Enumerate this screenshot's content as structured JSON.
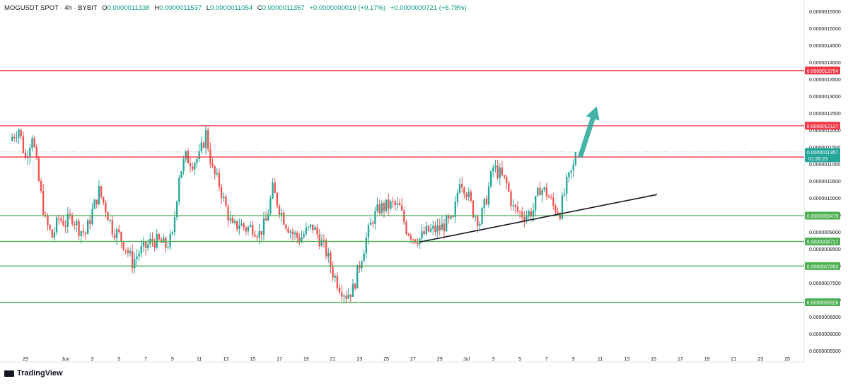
{
  "legend": {
    "symbol": "MOGUSDT SPOT · 4h · BYBIT",
    "o_label": "O",
    "o_value": "0.0000011338",
    "h_label": "H",
    "h_value": "0.0000011537",
    "l_label": "L",
    "l_value": "0.0000011054",
    "c_label": "C",
    "c_value": "0.0000011357",
    "change": "+0.0000000019 (+0.17%)",
    "range": "+0.0000000721 (+6.78%)"
  },
  "brand": {
    "name": "TradingView"
  },
  "colors": {
    "up": "#26a69a",
    "down": "#ef5350",
    "resistance": "#f23645",
    "support": "#4caf50",
    "trendline": "#131722",
    "arrow": "#26a69a",
    "current_price_bg": "#26a69a"
  },
  "chart_data": {
    "type": "candlestick",
    "timeframe": "4h",
    "yrange": [
      5.3e-07,
      1.575e-06
    ],
    "y_ticks": [
      "0.0000015500",
      "0.0000015000",
      "0.0000014500",
      "0.0000014000",
      "0.0000013500",
      "0.0000013000",
      "0.0000012500",
      "0.0000012000",
      "0.0000011500",
      "0.0000011000",
      "0.0000010500",
      "0.0000010000",
      "0.0000009500",
      "0.0000009000",
      "0.0000008500",
      "0.0000008000",
      "0.0000007500",
      "0.0000007000",
      "0.0000006500",
      "0.0000006000",
      "0.0000005500"
    ],
    "x_range": [
      "2024-05-29",
      "2024-07-26"
    ],
    "x_ticks": [
      {
        "date": "2024-05-29",
        "label": "29"
      },
      {
        "date": "2024-06-01",
        "label": "Jun"
      },
      {
        "date": "2024-06-03",
        "label": "3"
      },
      {
        "date": "2024-06-05",
        "label": "5"
      },
      {
        "date": "2024-06-07",
        "label": "7"
      },
      {
        "date": "2024-06-09",
        "label": "9"
      },
      {
        "date": "2024-06-11",
        "label": "11"
      },
      {
        "date": "2024-06-13",
        "label": "13"
      },
      {
        "date": "2024-06-15",
        "label": "15"
      },
      {
        "date": "2024-06-17",
        "label": "17"
      },
      {
        "date": "2024-06-19",
        "label": "19"
      },
      {
        "date": "2024-06-21",
        "label": "21"
      },
      {
        "date": "2024-06-23",
        "label": "23"
      },
      {
        "date": "2024-06-25",
        "label": "25"
      },
      {
        "date": "2024-06-27",
        "label": "27"
      },
      {
        "date": "2024-06-29",
        "label": "29"
      },
      {
        "date": "2024-07-01",
        "label": "Jul"
      },
      {
        "date": "2024-07-03",
        "label": "3"
      },
      {
        "date": "2024-07-05",
        "label": "5"
      },
      {
        "date": "2024-07-07",
        "label": "7"
      },
      {
        "date": "2024-07-09",
        "label": "9"
      },
      {
        "date": "2024-07-11",
        "label": "11"
      },
      {
        "date": "2024-07-13",
        "label": "13"
      },
      {
        "date": "2024-07-15",
        "label": "15"
      },
      {
        "date": "2024-07-17",
        "label": "17"
      },
      {
        "date": "2024-07-19",
        "label": "19"
      },
      {
        "date": "2024-07-21",
        "label": "21"
      },
      {
        "date": "2024-07-23",
        "label": "23"
      },
      {
        "date": "2024-07-25",
        "label": "25"
      }
    ],
    "price_path": [
      [
        "2024-05-28",
        1.18e-06
      ],
      [
        "2024-05-28 12:00",
        1.205e-06
      ],
      [
        "2024-05-29",
        1.115e-06
      ],
      [
        "2024-05-29 12:00",
        1.19e-06
      ],
      [
        "2024-05-30",
        1.048e-06
      ],
      [
        "2024-05-30 12:00",
        9.3e-07
      ],
      [
        "2024-05-31",
        8.85e-07
      ],
      [
        "2024-05-31 12:00",
        9.4e-07
      ],
      [
        "2024-06-01",
        9.25e-07
      ],
      [
        "2024-06-01 12:00",
        9.45e-07
      ],
      [
        "2024-06-02",
        9.1e-07
      ],
      [
        "2024-06-02 12:00",
        8.95e-07
      ],
      [
        "2024-06-03",
        9.6e-07
      ],
      [
        "2024-06-03 12:00",
        1.02e-06
      ],
      [
        "2024-06-04",
        9.7e-07
      ],
      [
        "2024-06-04 12:00",
        9.1e-07
      ],
      [
        "2024-06-05",
        8.9e-07
      ],
      [
        "2024-06-05 12:00",
        8.55e-07
      ],
      [
        "2024-06-06",
        8.1e-07
      ],
      [
        "2024-06-06 12:00",
        8.4e-07
      ],
      [
        "2024-06-07",
        8.55e-07
      ],
      [
        "2024-06-07 12:00",
        8.75e-07
      ],
      [
        "2024-06-08",
        8.7e-07
      ],
      [
        "2024-06-08 12:00",
        8.58e-07
      ],
      [
        "2024-06-09",
        8.85e-07
      ],
      [
        "2024-06-09 12:00",
        1.07e-06
      ],
      [
        "2024-06-10",
        1.12e-06
      ],
      [
        "2024-06-10 12:00",
        1.105e-06
      ],
      [
        "2024-06-11",
        1.12e-06
      ],
      [
        "2024-06-11 12:00",
        1.19e-06
      ],
      [
        "2024-06-12",
        1.08e-06
      ],
      [
        "2024-06-12 12:00",
        1.04e-06
      ],
      [
        "2024-06-13",
        9.7e-07
      ],
      [
        "2024-06-13 12:00",
        9.1e-07
      ],
      [
        "2024-06-14",
        9.25e-07
      ],
      [
        "2024-06-14 12:00",
        9.1e-07
      ],
      [
        "2024-06-15",
        9.15e-07
      ],
      [
        "2024-06-15 12:00",
        8.95e-07
      ],
      [
        "2024-06-16",
        9.3e-07
      ],
      [
        "2024-06-16 12:00",
        1.025e-06
      ],
      [
        "2024-06-17",
        9.7e-07
      ],
      [
        "2024-06-17 12:00",
        9.25e-07
      ],
      [
        "2024-06-18",
        8.95e-07
      ],
      [
        "2024-06-18 12:00",
        8.8e-07
      ],
      [
        "2024-06-19",
        9e-07
      ],
      [
        "2024-06-19 12:00",
        9.15e-07
      ],
      [
        "2024-06-20",
        8.8e-07
      ],
      [
        "2024-06-20 12:00",
        8.4e-07
      ],
      [
        "2024-06-21",
        7.8e-07
      ],
      [
        "2024-06-21 12:00",
        7.4e-07
      ],
      [
        "2024-06-22",
        7.15e-07
      ],
      [
        "2024-06-22 12:00",
        7.3e-07
      ],
      [
        "2024-06-23",
        8.05e-07
      ],
      [
        "2024-06-23 12:00",
        8.8e-07
      ],
      [
        "2024-06-24",
        9.4e-07
      ],
      [
        "2024-06-24 12:00",
        9.7e-07
      ],
      [
        "2024-06-25",
        9.75e-07
      ],
      [
        "2024-06-25 12:00",
        9.8e-07
      ],
      [
        "2024-06-26",
        9.7e-07
      ],
      [
        "2024-06-26 12:00",
        9.1e-07
      ],
      [
        "2024-06-27",
        8.85e-07
      ],
      [
        "2024-06-27 12:00",
        8.8e-07
      ],
      [
        "2024-06-28",
        9e-07
      ],
      [
        "2024-06-28 12:00",
        9.05e-07
      ],
      [
        "2024-06-29",
        9.1e-07
      ],
      [
        "2024-06-29 12:00",
        9.25e-07
      ],
      [
        "2024-06-30",
        9.3e-07
      ],
      [
        "2024-06-30 12:00",
        1.06e-06
      ],
      [
        "2024-07-01",
        1.02e-06
      ],
      [
        "2024-07-01 12:00",
        9.6e-07
      ],
      [
        "2024-07-02",
        9.3e-07
      ],
      [
        "2024-07-02 12:00",
        1e-06
      ],
      [
        "2024-07-03",
        1.09e-06
      ],
      [
        "2024-07-03 12:00",
        1.07e-06
      ],
      [
        "2024-07-04",
        1.04e-06
      ],
      [
        "2024-07-04 12:00",
        9.7e-07
      ],
      [
        "2024-07-05",
        9.55e-07
      ],
      [
        "2024-07-05 12:00",
        9.5e-07
      ],
      [
        "2024-07-06",
        9.65e-07
      ],
      [
        "2024-07-06 12:00",
        1.03e-06
      ],
      [
        "2024-07-07",
        1.015e-06
      ],
      [
        "2024-07-07 12:00",
        9.75e-07
      ],
      [
        "2024-07-08",
        9.6e-07
      ],
      [
        "2024-07-08 12:00",
        1.04e-06
      ],
      [
        "2024-07-09",
        1.09e-06
      ],
      [
        "2024-07-09 06:00",
        1.136e-06
      ]
    ],
    "horizontal_levels": [
      {
        "value": 1.3754e-06,
        "label": "0.0000013754",
        "kind": "resistance"
      },
      {
        "value": 1.2127e-06,
        "label": "0.0000012127",
        "kind": "resistance"
      },
      {
        "value": 1.1207e-06,
        "label": "0.0000011207",
        "kind": "resistance"
      },
      {
        "value": 9.479e-07,
        "label": "0.0000009479",
        "kind": "support"
      },
      {
        "value": 8.717e-07,
        "label": "0.0000008717",
        "kind": "support"
      },
      {
        "value": 7.993e-07,
        "label": "0.0000007993",
        "kind": "support"
      },
      {
        "value": 6.926e-07,
        "label": "0.0000006926",
        "kind": "support"
      }
    ],
    "current_price": {
      "value": 1.1357e-06,
      "label": "0.0000011357",
      "countdown": "01:26:23"
    },
    "trendline": {
      "points": [
        [
          "2024-06-27 12:00",
          8.7e-07
        ],
        [
          "2024-07-15 06:00",
          1.01e-06
        ]
      ]
    },
    "arrow": {
      "from": [
        "2024-07-09 12:00",
        1.12e-06
      ],
      "to": [
        "2024-07-10 18:00",
        1.27e-06
      ]
    }
  }
}
